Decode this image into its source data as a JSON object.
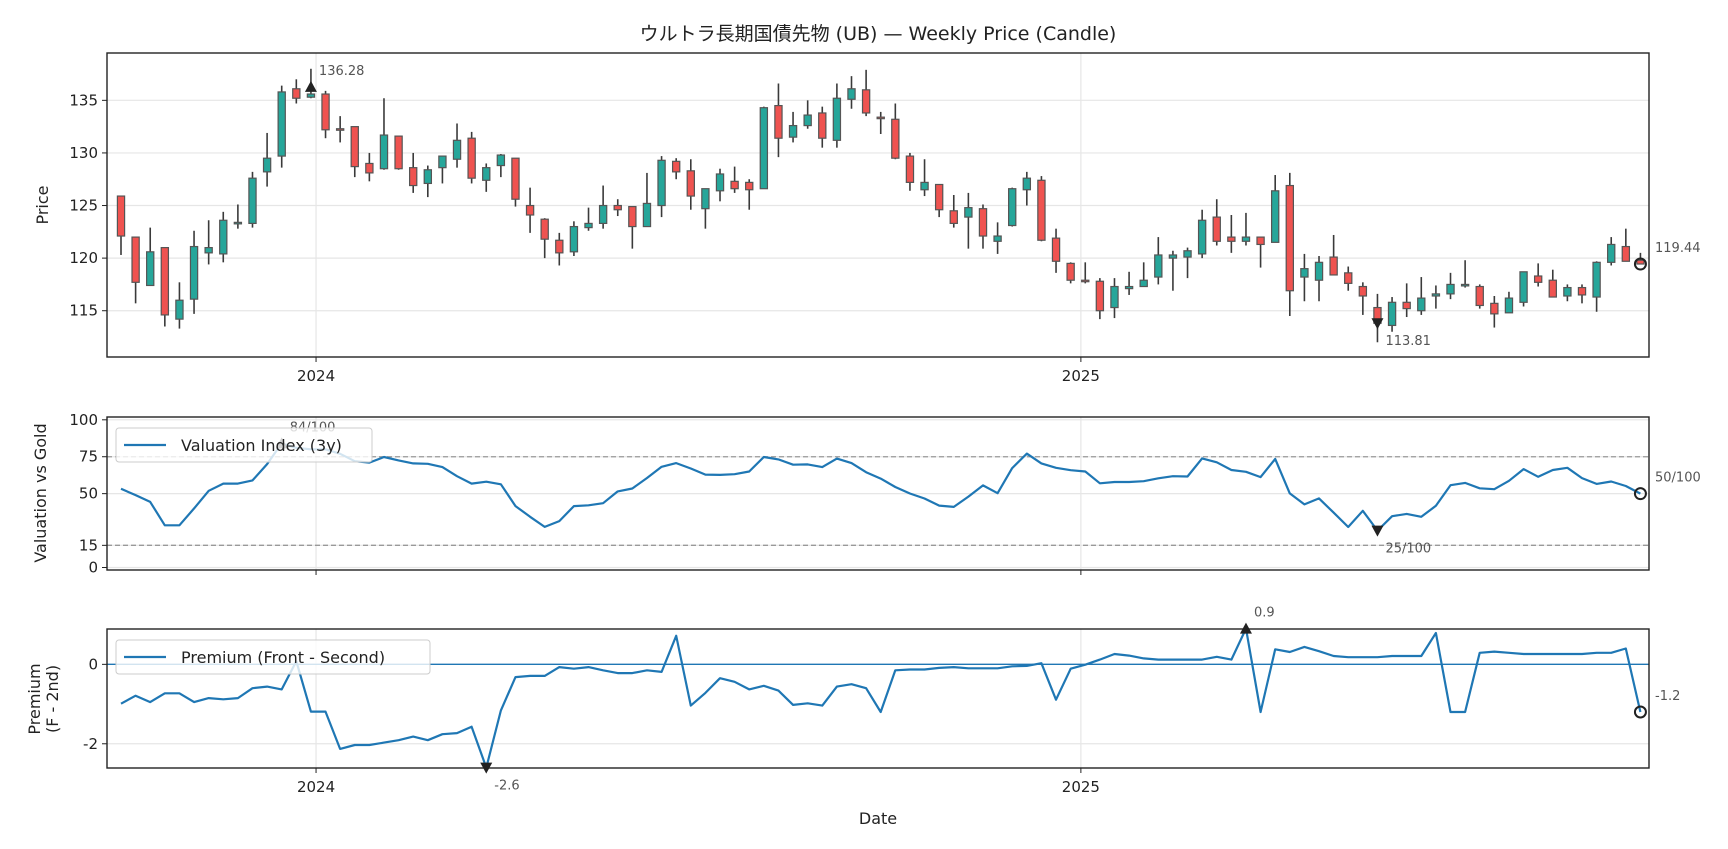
{
  "figure": {
    "title": "ウルトラ長期国債先物 (UB) — Weekly Price (Candle)",
    "xlabel": "Date",
    "colors": {
      "up": "#26a69a",
      "down": "#ef5350",
      "line": "#1f77b4",
      "edge": "#555555",
      "grid": "#e6e6e6",
      "ref": "#999999"
    }
  },
  "chart_data": [
    {
      "type": "candlestick",
      "title": "ウルトラ長期国債先物 (UB) — Weekly Price (Candle)",
      "ylabel": "Price",
      "ylim": [
        110.6,
        139.5
      ],
      "xlim_weeks": [
        -0.96,
        105.3
      ],
      "yticks": [
        115,
        120,
        125,
        130,
        135
      ],
      "xticks": [
        {
          "label": "2024",
          "week": 13.35
        },
        {
          "label": "2025",
          "week": 65.7
        }
      ],
      "candles_ohlc": [
        [
          125.9,
          125.9,
          120.3,
          122.1
        ],
        [
          122.0,
          122.0,
          115.7,
          117.7
        ],
        [
          117.4,
          122.9,
          117.4,
          120.6
        ],
        [
          121.0,
          121.0,
          113.5,
          114.6
        ],
        [
          114.2,
          117.7,
          113.3,
          116.0
        ],
        [
          116.1,
          122.6,
          114.7,
          121.1
        ],
        [
          120.5,
          123.6,
          119.4,
          121.0
        ],
        [
          120.4,
          124.4,
          119.6,
          123.6
        ],
        [
          123.3,
          125.1,
          122.8,
          123.4
        ],
        [
          123.3,
          128.2,
          122.9,
          127.6
        ],
        [
          128.2,
          131.9,
          126.8,
          129.5
        ],
        [
          129.7,
          136.4,
          128.6,
          135.8
        ],
        [
          136.1,
          137.0,
          134.7,
          135.2
        ],
        [
          135.3,
          138.0,
          135.2,
          135.6
        ],
        [
          135.6,
          135.9,
          131.4,
          132.2
        ],
        [
          132.3,
          133.5,
          131.0,
          132.2
        ],
        [
          132.5,
          132.5,
          127.7,
          128.7
        ],
        [
          129.0,
          130.0,
          127.3,
          128.1
        ],
        [
          128.5,
          135.2,
          128.4,
          131.7
        ],
        [
          131.6,
          131.6,
          128.4,
          128.5
        ],
        [
          128.6,
          130.0,
          126.2,
          126.9
        ],
        [
          127.1,
          128.8,
          125.8,
          128.4
        ],
        [
          128.6,
          129.7,
          127.1,
          129.7
        ],
        [
          129.4,
          132.8,
          128.6,
          131.2
        ],
        [
          131.4,
          132.0,
          127.1,
          127.6
        ],
        [
          127.4,
          129.0,
          126.3,
          128.6
        ],
        [
          128.8,
          129.9,
          127.7,
          129.8
        ],
        [
          129.5,
          129.5,
          124.9,
          125.6
        ],
        [
          125.0,
          126.7,
          122.4,
          124.1
        ],
        [
          123.7,
          123.8,
          120.0,
          121.8
        ],
        [
          121.7,
          122.4,
          119.3,
          120.5
        ],
        [
          120.6,
          123.5,
          120.2,
          123.0
        ],
        [
          122.9,
          124.8,
          122.6,
          123.3
        ],
        [
          123.3,
          126.9,
          122.8,
          125.0
        ],
        [
          125.0,
          125.6,
          124.0,
          124.6
        ],
        [
          124.9,
          124.9,
          120.9,
          123.0
        ],
        [
          123.0,
          128.1,
          123.0,
          125.2
        ],
        [
          125.0,
          129.7,
          123.9,
          129.3
        ],
        [
          129.2,
          129.5,
          127.5,
          128.2
        ],
        [
          128.3,
          129.4,
          124.6,
          125.9
        ],
        [
          124.7,
          126.6,
          122.8,
          126.6
        ],
        [
          126.4,
          128.5,
          125.4,
          128.0
        ],
        [
          127.3,
          128.7,
          126.2,
          126.6
        ],
        [
          127.2,
          127.5,
          124.6,
          126.5
        ],
        [
          126.6,
          134.4,
          126.6,
          134.3
        ],
        [
          134.5,
          136.6,
          129.6,
          131.4
        ],
        [
          131.5,
          133.9,
          131.0,
          132.6
        ],
        [
          132.6,
          135.0,
          132.3,
          133.6
        ],
        [
          133.8,
          134.4,
          130.5,
          131.4
        ],
        [
          131.2,
          136.6,
          130.5,
          135.2
        ],
        [
          135.1,
          137.3,
          134.2,
          136.1
        ],
        [
          136.0,
          137.9,
          133.5,
          133.8
        ],
        [
          133.4,
          133.9,
          131.8,
          133.3
        ],
        [
          133.2,
          134.7,
          129.4,
          129.5
        ],
        [
          129.7,
          130.0,
          126.4,
          127.2
        ],
        [
          126.5,
          129.4,
          125.9,
          127.2
        ],
        [
          127.0,
          127.0,
          123.9,
          124.6
        ],
        [
          124.5,
          126.0,
          122.9,
          123.3
        ],
        [
          123.9,
          126.2,
          120.9,
          124.8
        ],
        [
          124.7,
          125.1,
          120.9,
          122.1
        ],
        [
          121.6,
          123.4,
          120.4,
          122.1
        ],
        [
          123.1,
          126.7,
          123.0,
          126.6
        ],
        [
          126.5,
          128.2,
          125.0,
          127.6
        ],
        [
          127.4,
          127.8,
          121.6,
          121.7
        ],
        [
          121.9,
          122.8,
          118.6,
          119.7
        ],
        [
          119.5,
          119.6,
          117.6,
          117.9
        ],
        [
          117.9,
          119.6,
          117.6,
          117.8
        ],
        [
          117.8,
          118.1,
          114.2,
          115.0
        ],
        [
          115.3,
          118.1,
          114.3,
          117.3
        ],
        [
          117.1,
          118.7,
          116.5,
          117.3
        ],
        [
          117.3,
          119.6,
          117.3,
          117.9
        ],
        [
          118.2,
          122.0,
          117.5,
          120.3
        ],
        [
          120.0,
          120.7,
          116.9,
          120.3
        ],
        [
          120.1,
          121.0,
          118.1,
          120.7
        ],
        [
          120.4,
          124.6,
          120.0,
          123.6
        ],
        [
          123.9,
          125.6,
          121.2,
          121.6
        ],
        [
          122.0,
          124.1,
          120.5,
          121.6
        ],
        [
          121.6,
          124.3,
          121.2,
          122.0
        ],
        [
          122.0,
          122.0,
          119.1,
          121.3
        ],
        [
          121.5,
          127.9,
          121.5,
          126.4
        ],
        [
          126.9,
          128.1,
          114.5,
          116.9
        ],
        [
          118.2,
          120.4,
          115.9,
          119.0
        ],
        [
          117.9,
          120.2,
          115.9,
          119.6
        ],
        [
          120.1,
          122.2,
          118.4,
          118.4
        ],
        [
          118.6,
          119.2,
          116.9,
          117.6
        ],
        [
          117.3,
          117.7,
          114.6,
          116.4
        ],
        [
          115.3,
          116.6,
          112.0,
          113.81
        ],
        [
          113.6,
          116.3,
          113.0,
          115.8
        ],
        [
          115.8,
          117.6,
          114.4,
          115.2
        ],
        [
          115.0,
          118.2,
          114.6,
          116.2
        ],
        [
          116.4,
          117.4,
          115.2,
          116.6
        ],
        [
          116.6,
          118.6,
          116.1,
          117.5
        ],
        [
          117.4,
          119.8,
          117.2,
          117.5
        ],
        [
          117.3,
          117.5,
          115.2,
          115.5
        ],
        [
          115.7,
          116.4,
          113.4,
          114.7
        ],
        [
          114.8,
          116.8,
          114.8,
          116.2
        ],
        [
          115.8,
          118.7,
          115.4,
          118.7
        ],
        [
          118.3,
          119.5,
          117.3,
          117.7
        ],
        [
          117.9,
          118.9,
          116.3,
          116.3
        ],
        [
          116.4,
          117.5,
          115.9,
          117.2
        ],
        [
          117.2,
          117.5,
          115.7,
          116.5
        ],
        [
          116.3,
          119.7,
          114.9,
          119.6
        ],
        [
          119.6,
          122.0,
          119.3,
          121.3
        ],
        [
          121.1,
          122.8,
          119.7,
          119.7
        ],
        [
          119.8,
          120.5,
          119.4,
          119.44
        ]
      ],
      "annotations": [
        {
          "type": "max",
          "week": 13,
          "value": 136.28,
          "text": "136.28"
        },
        {
          "type": "min",
          "week": 86,
          "value": 113.81,
          "text": "113.81"
        },
        {
          "type": "last",
          "week": 104,
          "value": 119.44,
          "text": "119.44"
        }
      ]
    },
    {
      "type": "line",
      "ylabel": "Valuation vs Gold",
      "ylim": [
        -1.7,
        101.9
      ],
      "yticks": [
        0,
        15,
        50,
        75,
        100
      ],
      "reference_lines": [
        75,
        15
      ],
      "legend": {
        "label": "Valuation Index (3y)",
        "placement": "upper-left"
      },
      "series": [
        {
          "name": "Valuation Index (3y)",
          "values": [
            53.3,
            49,
            44.4,
            28.6,
            28.6,
            40,
            51.9,
            56.8,
            56.8,
            59,
            70,
            84,
            81,
            80,
            80,
            77,
            72,
            71,
            74.8,
            72.5,
            70.5,
            70.2,
            68,
            61.8,
            56.8,
            58.1,
            56.3,
            41.6,
            34.3,
            27.5,
            31.4,
            41.6,
            42.1,
            43.5,
            51.5,
            53.5,
            60.6,
            68.2,
            70.7,
            67,
            62.9,
            62.7,
            63.2,
            65,
            74.8,
            73.2,
            69.6,
            69.8,
            68,
            73.7,
            70.7,
            64.5,
            60.2,
            54.5,
            50.1,
            46.7,
            41.9,
            41,
            48,
            55.6,
            50.3,
            67.3,
            77.1,
            70.5,
            67.5,
            65.9,
            65,
            57,
            57.9,
            57.9,
            58.4,
            60.4,
            61.8,
            61.6,
            73.9,
            71.2,
            66,
            64.8,
            61.2,
            73.5,
            50.2,
            42.7,
            46.8,
            37.2,
            27.4,
            38.4,
            25,
            34.7,
            36.3,
            34.3,
            41.8,
            55.7,
            57.3,
            53.6,
            53,
            58.7,
            66.6,
            61.4,
            66,
            67.5,
            60.5,
            56.6,
            58.2,
            55.2,
            50
          ]
        }
      ],
      "annotations": [
        {
          "type": "max",
          "week": 11,
          "value": 84,
          "text": "84/100"
        },
        {
          "type": "min",
          "week": 86,
          "value": 25,
          "text": "25/100"
        },
        {
          "type": "last",
          "week": 104,
          "value": 50,
          "text": "50/100"
        }
      ]
    },
    {
      "type": "line",
      "ylabel": "Premium\n(F - 2nd)",
      "ylabel_lines": [
        "Premium",
        "(F - 2nd)"
      ],
      "xlabel": "Date",
      "ylim": [
        -2.61,
        0.89
      ],
      "yticks": [
        -2,
        0
      ],
      "reference_lines": [
        0
      ],
      "legend": {
        "label": "Premium (Front - Second)",
        "placement": "upper-left"
      },
      "series": [
        {
          "name": "Premium (Front - Second)",
          "values": [
            -0.99,
            -0.79,
            -0.95,
            -0.73,
            -0.73,
            -0.95,
            -0.85,
            -0.88,
            -0.85,
            -0.6,
            -0.56,
            -0.63,
            0.08,
            -1.19,
            -1.19,
            -2.13,
            -2.03,
            -2.03,
            -1.97,
            -1.91,
            -1.82,
            -1.91,
            -1.76,
            -1.73,
            -1.57,
            -2.6,
            -1.16,
            -0.32,
            -0.29,
            -0.29,
            -0.07,
            -0.11,
            -0.07,
            -0.15,
            -0.22,
            -0.22,
            -0.15,
            -0.19,
            0.72,
            -1.04,
            -0.72,
            -0.35,
            -0.44,
            -0.63,
            -0.54,
            -0.66,
            -1.02,
            -0.98,
            -1.04,
            -0.56,
            -0.5,
            -0.6,
            -1.2,
            -0.15,
            -0.13,
            -0.13,
            -0.09,
            -0.07,
            -0.1,
            -0.1,
            -0.1,
            -0.05,
            -0.04,
            0.03,
            -0.89,
            -0.11,
            -0.01,
            0.12,
            0.26,
            0.22,
            0.15,
            0.12,
            0.12,
            0.12,
            0.12,
            0.19,
            0.12,
            0.9,
            -1.2,
            0.38,
            0.31,
            0.44,
            0.33,
            0.21,
            0.18,
            0.18,
            0.18,
            0.21,
            0.21,
            0.21,
            0.79,
            -1.2,
            -1.2,
            0.29,
            0.32,
            0.29,
            0.26,
            0.26,
            0.26,
            0.26,
            0.26,
            0.29,
            0.29,
            0.4,
            -1.2
          ]
        }
      ],
      "annotations": [
        {
          "type": "max",
          "week": 77,
          "value": 0.9,
          "text": "0.9"
        },
        {
          "type": "min",
          "week": 25,
          "value": -2.6,
          "text": "-2.6"
        },
        {
          "type": "last",
          "week": 104,
          "value": -1.2,
          "text": "-1.2"
        }
      ]
    }
  ]
}
